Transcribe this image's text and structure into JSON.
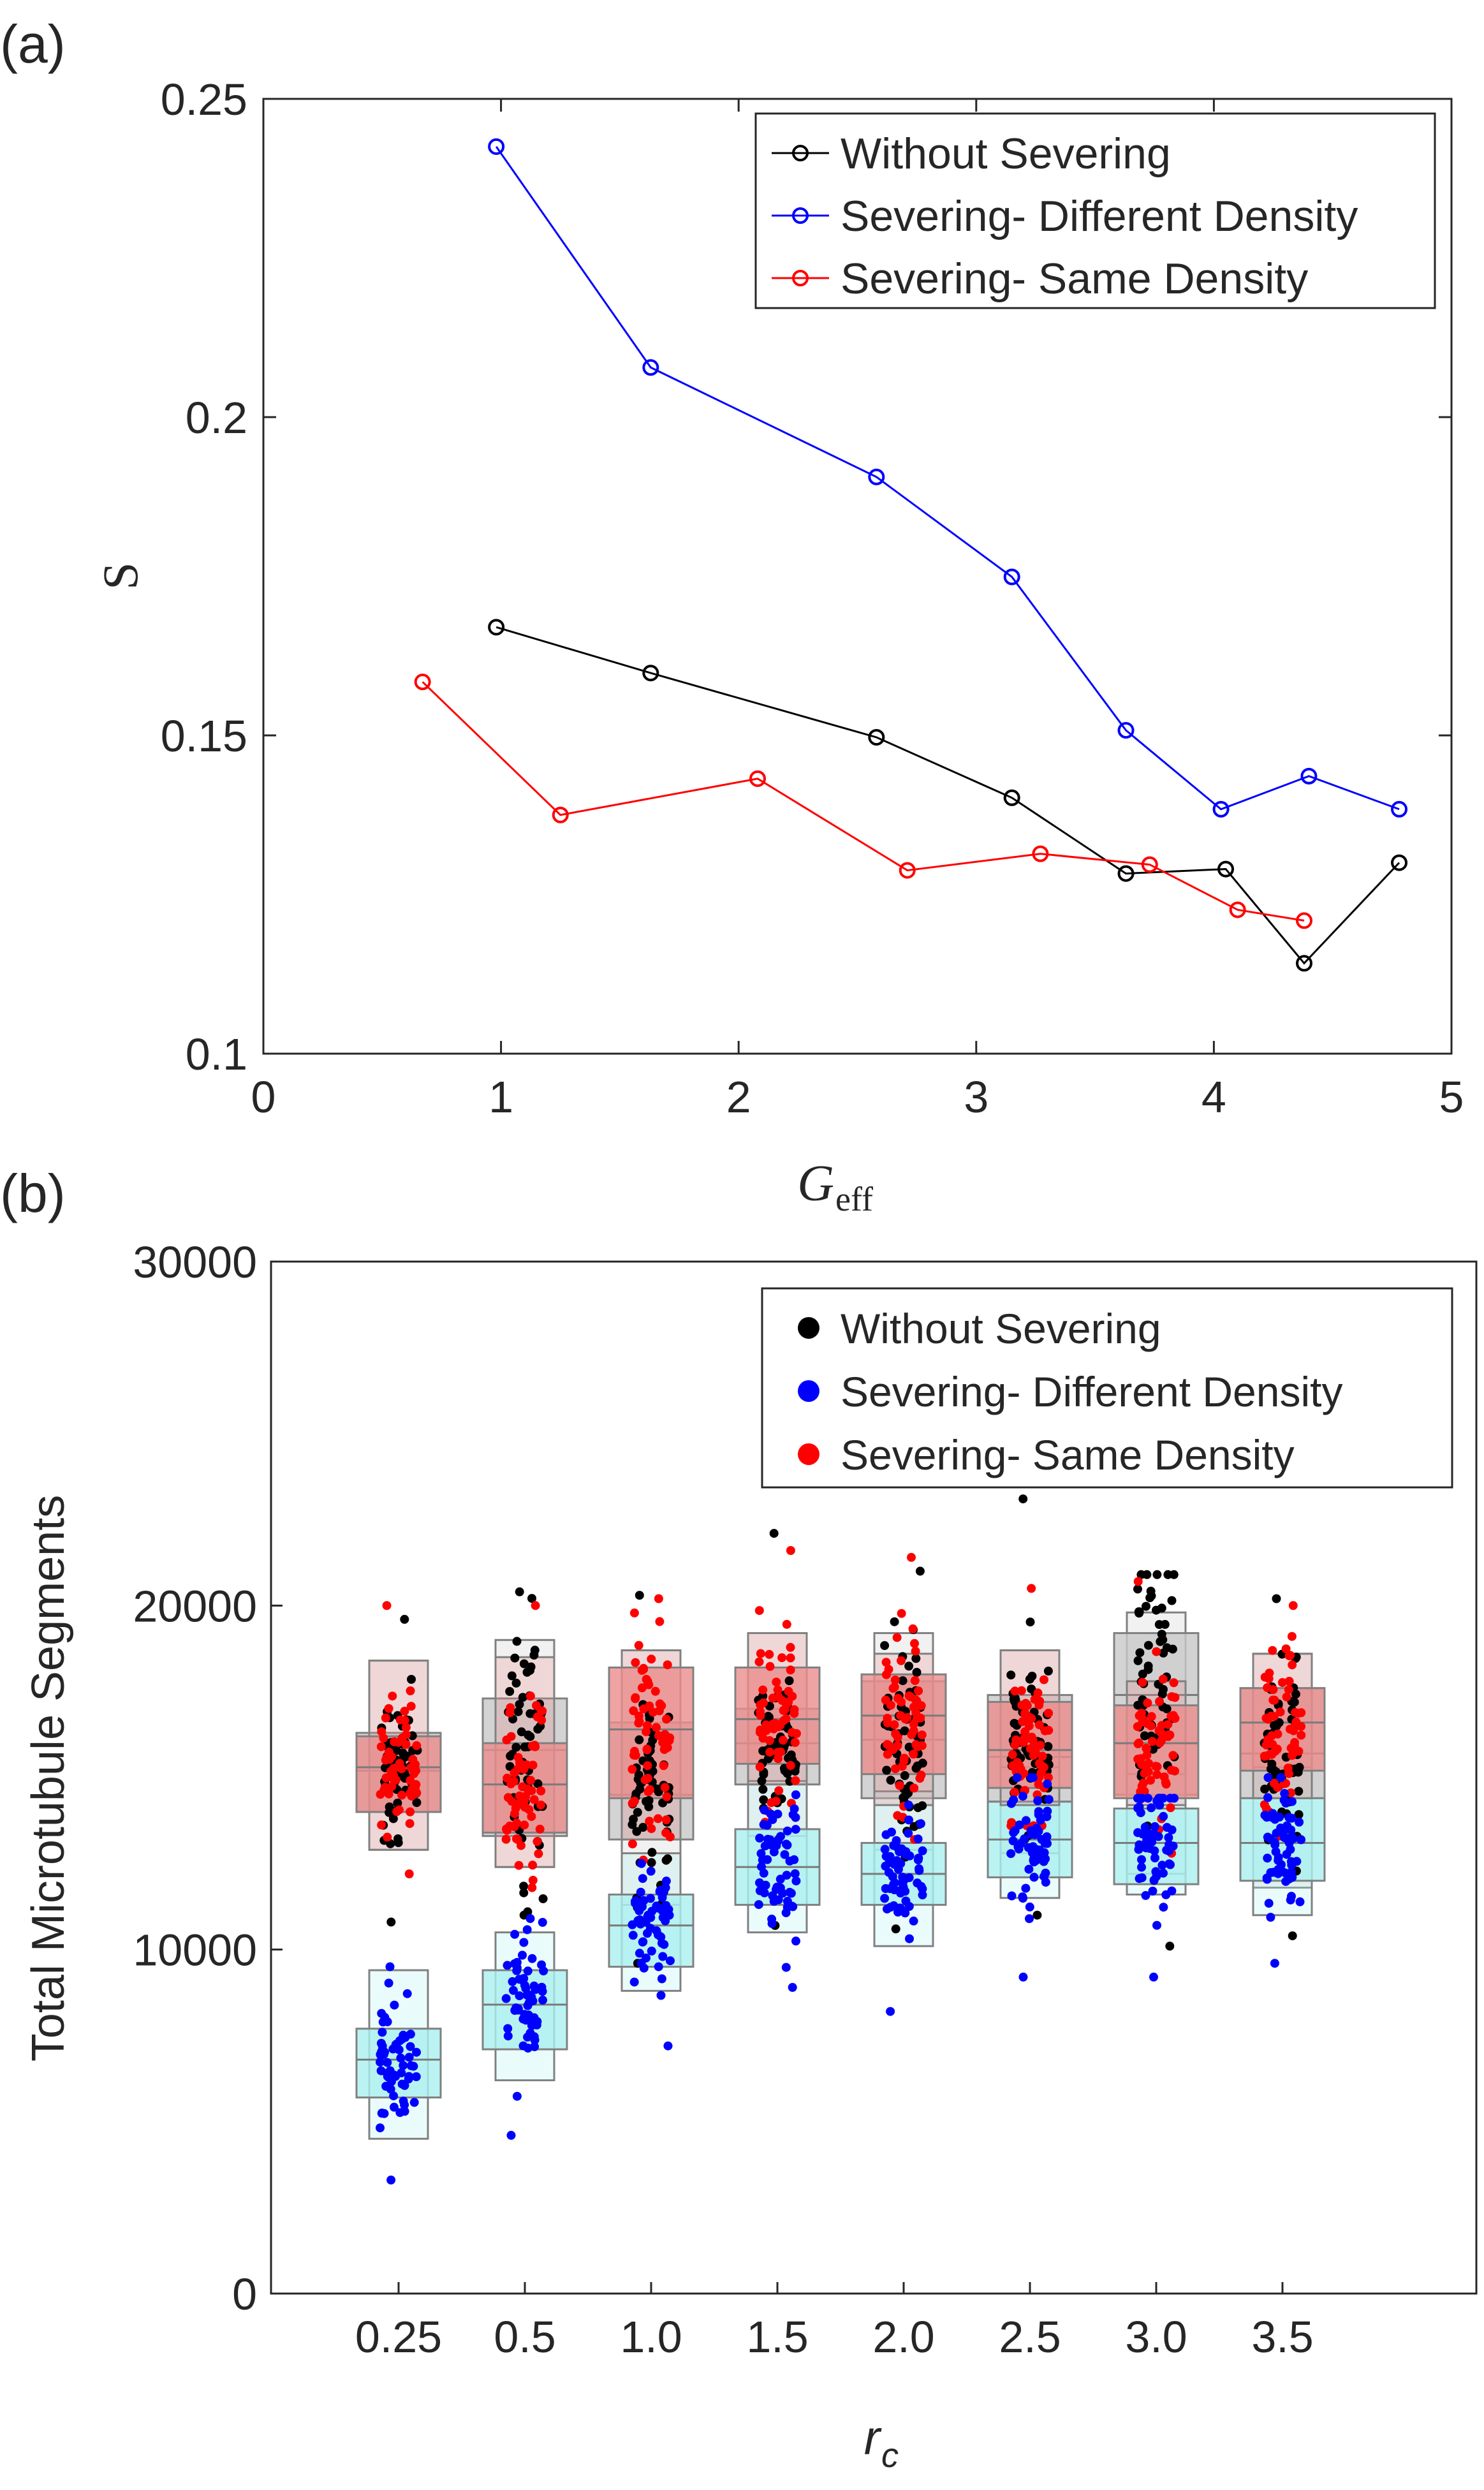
{
  "chart_data": [
    {
      "type": "line",
      "panel_label": "(a)",
      "ylabel": "S",
      "xlabel_main": "G",
      "xlabel_sub": "eff",
      "xlim": [
        0,
        5
      ],
      "ylim": [
        0.1,
        0.25
      ],
      "xticks": [
        0,
        1,
        2,
        3,
        4,
        5
      ],
      "xtick_labels": [
        "0",
        "1",
        "2",
        "3",
        "4",
        "5"
      ],
      "yticks": [
        0.1,
        0.15,
        0.2,
        0.25
      ],
      "ytick_labels": [
        "0.1",
        "0.15",
        "0.2",
        "0.25"
      ],
      "legend_position": "top-right",
      "series": [
        {
          "name": "Without Severing",
          "color": "#000000",
          "x": [
            0.98,
            1.63,
            2.58,
            3.15,
            3.63,
            4.05,
            4.38,
            4.78
          ],
          "y": [
            0.167,
            0.1598,
            0.1497,
            0.1402,
            0.1283,
            0.129,
            0.1142,
            0.13
          ]
        },
        {
          "name": "Severing- Different Density",
          "color": "#0000ff",
          "x": [
            0.98,
            1.63,
            2.58,
            3.15,
            3.63,
            4.03,
            4.4,
            4.78
          ],
          "y": [
            0.2425,
            0.2078,
            0.1906,
            0.1749,
            0.1508,
            0.1384,
            0.1436,
            0.1384
          ]
        },
        {
          "name": "Severing- Same Density",
          "color": "#ff0000",
          "x": [
            0.67,
            1.25,
            2.08,
            2.71,
            3.27,
            3.73,
            4.1,
            4.38
          ],
          "y": [
            0.1584,
            0.1375,
            0.1432,
            0.1288,
            0.1314,
            0.1297,
            0.1226,
            0.1209
          ]
        }
      ]
    },
    {
      "type": "boxplot",
      "panel_label": "(b)",
      "ylabel": "Total Microtubule Segments",
      "xlabel": "r",
      "xlabel_sub": "c",
      "categories": [
        "0.25",
        "0.5",
        "1.0",
        "1.5",
        "2.0",
        "2.5",
        "3.0",
        "3.5"
      ],
      "ylim": [
        0,
        30000
      ],
      "yticks": [
        0,
        10000,
        20000,
        30000
      ],
      "ytick_labels": [
        "0",
        "10000",
        "20000",
        "30000"
      ],
      "legend_position": "top-right",
      "series": [
        {
          "name": "Without Severing",
          "color": "#000000",
          "box_color": "#c8c8c8",
          "median": [
            15200,
            15800,
            14500,
            16000,
            16100,
            15600,
            17400,
            15700
          ],
          "q1": [
            14000,
            13300,
            13200,
            14800,
            14400,
            14300,
            14500,
            14400
          ],
          "q3": [
            16300,
            17300,
            16600,
            17000,
            17800,
            17400,
            19200,
            17600
          ],
          "outer_low": [
            12900,
            12400,
            11300,
            13300,
            12900,
            12800,
            12200,
            11800
          ],
          "outer_high": [
            18400,
            19000,
            18700,
            19200,
            19200,
            18700,
            19800,
            18600
          ],
          "min": [
            10800,
            11000,
            9600,
            10700,
            10600,
            11000,
            10100,
            10400
          ],
          "max": [
            19600,
            20400,
            20300,
            22100,
            21000,
            23100,
            20900,
            20200
          ]
        },
        {
          "name": "Severing- Different Density",
          "color": "#0000ff",
          "box_color": "#aaf0f0",
          "median": [
            6800,
            8400,
            10700,
            12400,
            12200,
            13200,
            13100,
            13100
          ],
          "q1": [
            5700,
            7100,
            9500,
            11300,
            11300,
            12100,
            11900,
            12000
          ],
          "q3": [
            7700,
            9400,
            11600,
            13500,
            13100,
            14300,
            14100,
            14400
          ],
          "outer_low": [
            4500,
            6200,
            8800,
            10500,
            10100,
            11500,
            11600,
            11000
          ],
          "outer_high": [
            9400,
            10500,
            12800,
            14900,
            14600,
            15300,
            15100,
            15300
          ],
          "min": [
            3300,
            4600,
            7200,
            8900,
            8200,
            9200,
            9200,
            9600
          ],
          "max": [
            9500,
            10900,
            12500,
            14500,
            14200,
            15000,
            14400,
            15000
          ]
        },
        {
          "name": "Severing- Same Density",
          "color": "#ff0000",
          "box_color": "#eb8c8c",
          "median": [
            15300,
            14800,
            16400,
            16700,
            16800,
            15800,
            16000,
            16600
          ],
          "q1": [
            14000,
            13400,
            14400,
            15400,
            15100,
            14700,
            14400,
            15200
          ],
          "q3": [
            16200,
            16000,
            18200,
            18200,
            18000,
            17200,
            17100,
            17600
          ],
          "outer_low": [
            12900,
            12400,
            13200,
            14800,
            14200,
            14200,
            14200,
            14400
          ],
          "outer_high": [
            18400,
            18500,
            18700,
            19200,
            18600,
            18700,
            17800,
            18600
          ],
          "min": [
            12200,
            11800,
            12600,
            13700,
            13200,
            13600,
            12800,
            13300
          ],
          "max": [
            20000,
            20000,
            20200,
            21600,
            21400,
            20500,
            20700,
            20000
          ]
        }
      ]
    }
  ]
}
